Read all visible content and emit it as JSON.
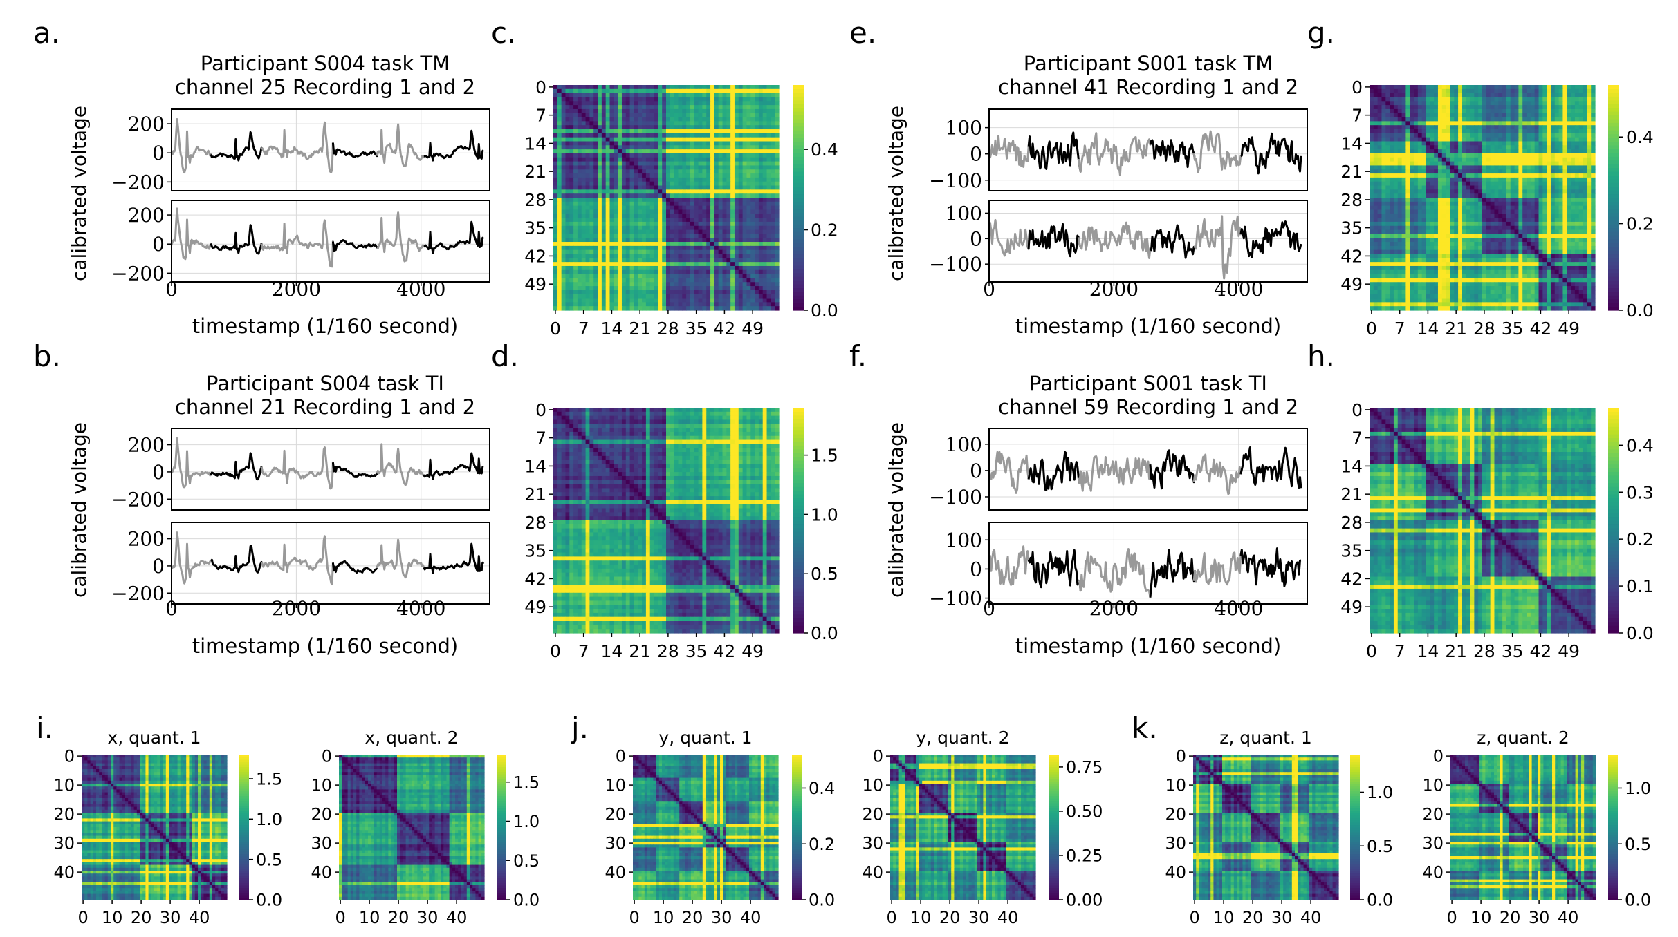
{
  "figure": {
    "panels": [
      {
        "label": "a.",
        "title": [
          "Participant S004 task TM",
          "channel 25 Recording 1 and 2"
        ],
        "ylabel": "calibrated voltage",
        "xlabel": "timestamp (1/160 second)"
      },
      {
        "label": "b.",
        "title": [
          "Participant S004 task TI",
          "channel 21 Recording 1 and 2"
        ],
        "ylabel": "calibrated voltage",
        "xlabel": "timestamp (1/160 second)"
      },
      {
        "label": "e.",
        "title": [
          "Participant S001 task TM",
          "channel 41 Recording 1 and 2"
        ],
        "ylabel": "calibrated voltage",
        "xlabel": "timestamp (1/160 second)"
      },
      {
        "label": "f.",
        "title": [
          "Participant S001 task TI",
          "channel 59 Recording 1 and 2"
        ],
        "ylabel": "calibrated voltage",
        "xlabel": "timestamp (1/160 second)"
      },
      {
        "label": "c."
      },
      {
        "label": "d."
      },
      {
        "label": "g."
      },
      {
        "label": "h."
      },
      {
        "label": "i."
      },
      {
        "label": "j."
      },
      {
        "label": "k."
      }
    ]
  },
  "chart_data": [
    {
      "id": "a",
      "type": "line",
      "title": "Participant S004 task TM channel 25 Recording 1 and 2",
      "xlabel": "timestamp (1/160 second)",
      "ylabel": "calibrated voltage",
      "x_ticks": [
        0,
        2000,
        4000
      ],
      "xlim": [
        0,
        5100
      ],
      "subplots": [
        {
          "name": "Recording 1",
          "ylim": [
            -260,
            300
          ],
          "y_ticks": [
            200,
            0,
            -200
          ],
          "tick_labels": [
            "200",
            "0",
            "−200"
          ]
        },
        {
          "name": "Recording 2",
          "ylim": [
            -260,
            300
          ],
          "y_ticks": [
            200,
            0,
            -200
          ],
          "tick_labels": [
            "200",
            "0",
            "−200"
          ]
        }
      ],
      "series_colors": [
        "#999999",
        "#000000"
      ]
    },
    {
      "id": "b",
      "type": "line",
      "title": "Participant S004 task TI channel 21 Recording 1 and 2",
      "xlabel": "timestamp (1/160 second)",
      "ylabel": "calibrated voltage",
      "x_ticks": [
        0,
        2000,
        4000
      ],
      "xlim": [
        0,
        5100
      ],
      "subplots": [
        {
          "name": "Recording 1",
          "ylim": [
            -280,
            320
          ],
          "y_ticks": [
            200,
            0,
            -200
          ],
          "tick_labels": [
            "200",
            "0",
            "−200"
          ]
        },
        {
          "name": "Recording 2",
          "ylim": [
            -280,
            320
          ],
          "y_ticks": [
            200,
            0,
            -200
          ],
          "tick_labels": [
            "200",
            "0",
            "−200"
          ]
        }
      ],
      "series_colors": [
        "#999999",
        "#000000"
      ]
    },
    {
      "id": "e",
      "type": "line",
      "title": "Participant S001 task TM channel 41 Recording 1 and 2",
      "xlabel": "timestamp (1/160 second)",
      "ylabel": "calibrated voltage",
      "x_ticks": [
        0,
        2000,
        4000
      ],
      "xlim": [
        0,
        5100
      ],
      "subplots": [
        {
          "name": "Recording 1",
          "ylim": [
            -140,
            170
          ],
          "y_ticks": [
            100,
            0,
            -100
          ],
          "tick_labels": [
            "100",
            "0",
            "−100"
          ]
        },
        {
          "name": "Recording 2",
          "ylim": [
            -170,
            150
          ],
          "y_ticks": [
            100,
            0,
            -100
          ],
          "tick_labels": [
            "100",
            "0",
            "−100"
          ]
        }
      ],
      "series_colors": [
        "#999999",
        "#000000"
      ]
    },
    {
      "id": "f",
      "type": "line",
      "title": "Participant S001 task TI channel 59 Recording 1 and 2",
      "xlabel": "timestamp (1/160 second)",
      "ylabel": "calibrated voltage",
      "x_ticks": [
        0,
        2000,
        4000
      ],
      "xlim": [
        0,
        5100
      ],
      "subplots": [
        {
          "name": "Recording 1",
          "ylim": [
            -150,
            160
          ],
          "y_ticks": [
            100,
            0,
            -100
          ],
          "tick_labels": [
            "100",
            "0",
            "−100"
          ]
        },
        {
          "name": "Recording 2",
          "ylim": [
            -120,
            160
          ],
          "y_ticks": [
            100,
            0,
            -100
          ],
          "tick_labels": [
            "100",
            "0",
            "−100"
          ]
        }
      ],
      "series_colors": [
        "#999999",
        "#000000"
      ]
    },
    {
      "id": "c",
      "type": "heatmap",
      "n": 56,
      "blocks": [
        0,
        28,
        56
      ],
      "x_ticks": [
        0,
        7,
        14,
        21,
        28,
        35,
        42,
        49
      ],
      "y_ticks": [
        0,
        7,
        14,
        21,
        28,
        35,
        42,
        49
      ],
      "colorbar": {
        "range": [
          0,
          0.56
        ],
        "ticks": [
          0.0,
          0.2,
          0.4
        ],
        "labels": [
          "0.0",
          "0.2",
          "0.4"
        ]
      },
      "colormap": "viridis"
    },
    {
      "id": "d",
      "type": "heatmap",
      "n": 56,
      "blocks": [
        0,
        28,
        56
      ],
      "x_ticks": [
        0,
        7,
        14,
        21,
        28,
        35,
        42,
        49
      ],
      "y_ticks": [
        0,
        7,
        14,
        21,
        28,
        35,
        42,
        49
      ],
      "colorbar": {
        "range": [
          0,
          1.9
        ],
        "ticks": [
          0.0,
          0.5,
          1.0,
          1.5
        ],
        "labels": [
          "0.0",
          "0.5",
          "1.0",
          "1.5"
        ]
      },
      "colormap": "viridis"
    },
    {
      "id": "g",
      "type": "heatmap",
      "n": 56,
      "blocks": [
        0,
        14,
        28,
        42,
        56
      ],
      "x_ticks": [
        0,
        7,
        14,
        21,
        28,
        35,
        42,
        49
      ],
      "y_ticks": [
        0,
        7,
        14,
        21,
        28,
        35,
        42,
        49
      ],
      "colorbar": {
        "range": [
          0,
          0.52
        ],
        "ticks": [
          0.0,
          0.2,
          0.4
        ],
        "labels": [
          "0.0",
          "0.2",
          "0.4"
        ]
      },
      "colormap": "viridis"
    },
    {
      "id": "h",
      "type": "heatmap",
      "n": 56,
      "blocks": [
        0,
        14,
        28,
        42,
        56
      ],
      "x_ticks": [
        0,
        7,
        14,
        21,
        28,
        35,
        42,
        49
      ],
      "y_ticks": [
        0,
        7,
        14,
        21,
        28,
        35,
        42,
        49
      ],
      "colorbar": {
        "range": [
          0,
          0.48
        ],
        "ticks": [
          0.0,
          0.1,
          0.2,
          0.3,
          0.4
        ],
        "labels": [
          "0.0",
          "0.1",
          "0.2",
          "0.3",
          "0.4"
        ]
      },
      "colormap": "viridis"
    },
    {
      "id": "i1",
      "type": "heatmap",
      "title": "x, quant. 1",
      "n": 50,
      "blocks": [
        0,
        20,
        38,
        50
      ],
      "x_ticks": [
        0,
        10,
        20,
        30,
        40
      ],
      "y_ticks": [
        0,
        10,
        20,
        30,
        40
      ],
      "colorbar": {
        "range": [
          0,
          1.8
        ],
        "ticks": [
          0.0,
          0.5,
          1.0,
          1.5
        ],
        "labels": [
          "0.0",
          "0.5",
          "1.0",
          "1.5"
        ]
      },
      "colormap": "viridis"
    },
    {
      "id": "i2",
      "type": "heatmap",
      "title": "x, quant. 2",
      "n": 50,
      "blocks": [
        0,
        20,
        38,
        50
      ],
      "x_ticks": [
        0,
        10,
        20,
        30,
        40
      ],
      "y_ticks": [
        0,
        10,
        20,
        30,
        40
      ],
      "colorbar": {
        "range": [
          0,
          1.85
        ],
        "ticks": [
          0.0,
          0.5,
          1.0,
          1.5
        ],
        "labels": [
          "0.0",
          "0.5",
          "1.0",
          "1.5"
        ]
      },
      "colormap": "viridis"
    },
    {
      "id": "j1",
      "type": "heatmap",
      "title": "y, quant. 1",
      "n": 50,
      "blocks": [
        0,
        8,
        16,
        24,
        32,
        40,
        50
      ],
      "x_ticks": [
        0,
        10,
        20,
        30,
        40
      ],
      "y_ticks": [
        0,
        10,
        20,
        30,
        40
      ],
      "colorbar": {
        "range": [
          0,
          0.52
        ],
        "ticks": [
          0.0,
          0.2,
          0.4
        ],
        "labels": [
          "0.0",
          "0.2",
          "0.4"
        ]
      },
      "colormap": "viridis"
    },
    {
      "id": "j2",
      "type": "heatmap",
      "title": "y, quant. 2",
      "n": 50,
      "blocks": [
        0,
        10,
        20,
        30,
        40,
        50
      ],
      "x_ticks": [
        0,
        10,
        20,
        30,
        40
      ],
      "y_ticks": [
        0,
        10,
        20,
        30,
        40
      ],
      "colorbar": {
        "range": [
          0,
          0.82
        ],
        "ticks": [
          0.0,
          0.25,
          0.5,
          0.75
        ],
        "labels": [
          "0.00",
          "0.25",
          "0.50",
          "0.75"
        ]
      },
      "colormap": "viridis"
    },
    {
      "id": "k1",
      "type": "heatmap",
      "title": "z, quant. 1",
      "n": 50,
      "blocks": [
        0,
        10,
        20,
        30,
        40,
        50
      ],
      "x_ticks": [
        0,
        10,
        20,
        30,
        40
      ],
      "y_ticks": [
        0,
        10,
        20,
        30,
        40
      ],
      "colorbar": {
        "range": [
          0,
          1.35
        ],
        "ticks": [
          0.0,
          0.5,
          1.0
        ],
        "labels": [
          "0.0",
          "0.5",
          "1.0"
        ]
      },
      "colormap": "viridis"
    },
    {
      "id": "k2",
      "type": "heatmap",
      "title": "z, quant. 2",
      "n": 50,
      "blocks": [
        0,
        10,
        20,
        30,
        40,
        50
      ],
      "x_ticks": [
        0,
        10,
        20,
        30,
        40
      ],
      "y_ticks": [
        0,
        10,
        20,
        30,
        40
      ],
      "colorbar": {
        "range": [
          0,
          1.3
        ],
        "ticks": [
          0.0,
          0.5,
          1.0
        ],
        "labels": [
          "0.0",
          "0.5",
          "1.0"
        ]
      },
      "colormap": "viridis"
    }
  ]
}
